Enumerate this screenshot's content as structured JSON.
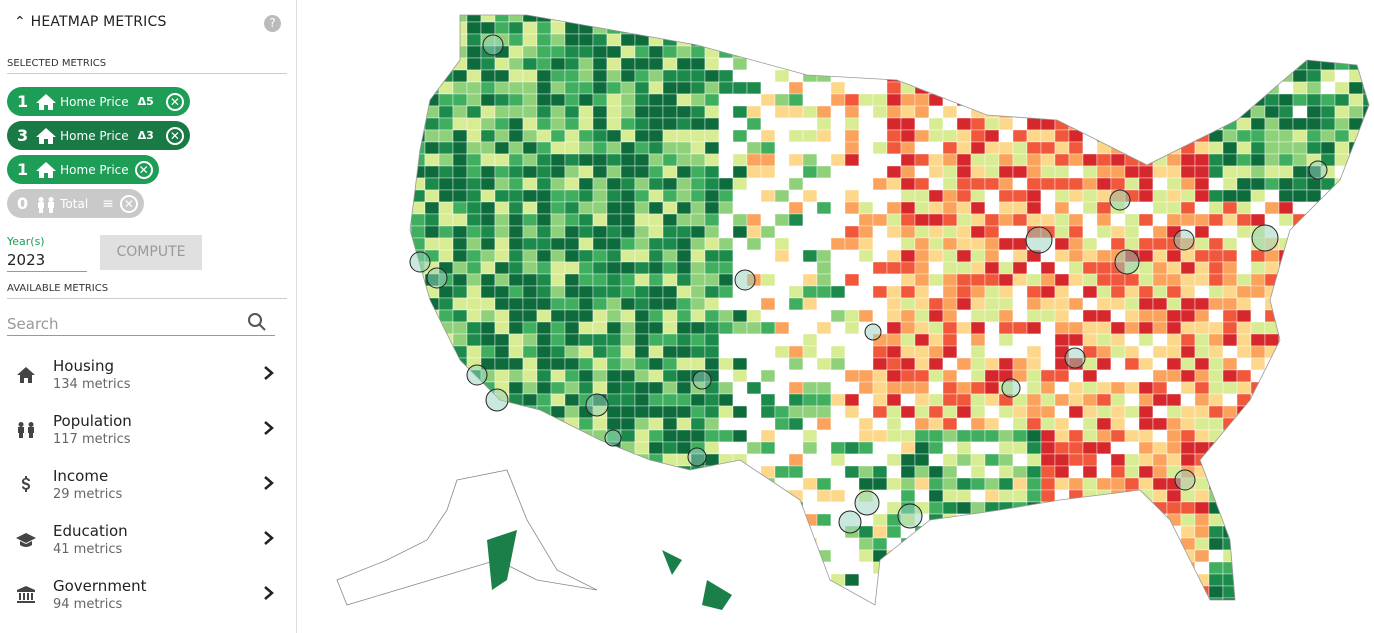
{
  "sidebar": {
    "title": "HEATMAP METRICS",
    "help": "?",
    "selected_label": "SELECTED METRICS",
    "selected": [
      {
        "rank": "1",
        "label": "Home Price",
        "delta": "Δ5"
      },
      {
        "rank": "3",
        "label": "Home Price",
        "delta": "Δ3"
      },
      {
        "rank": "1",
        "label": "Home Price"
      },
      {
        "rank": "0",
        "label": "Total"
      }
    ],
    "year_label": "Year(s)",
    "year": "2023",
    "compute": "COMPUTE",
    "available_label": "AVAILABLE METRICS",
    "search": "Search",
    "categories": [
      {
        "name": "Housing",
        "count": "134 metrics"
      },
      {
        "name": "Population",
        "count": "117 metrics"
      },
      {
        "name": "Income",
        "count": "29 metrics"
      },
      {
        "name": "Education",
        "count": "41 metrics"
      },
      {
        "name": "Government",
        "count": "94 metrics"
      }
    ]
  }
}
